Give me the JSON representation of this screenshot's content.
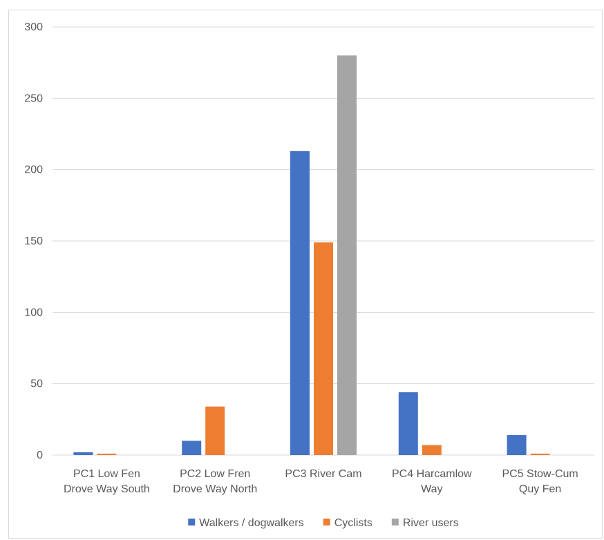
{
  "chart_data": {
    "type": "bar",
    "title": "",
    "xlabel": "",
    "ylabel": "",
    "ylim": [
      0,
      300
    ],
    "yticks": [
      0,
      50,
      100,
      150,
      200,
      250,
      300
    ],
    "grid": true,
    "legend_position": "bottom",
    "categories": [
      [
        "PC1 Low Fen",
        "Drove Way South"
      ],
      [
        "PC2 Low Fren",
        "Drove Way North"
      ],
      [
        "PC3 River Cam"
      ],
      [
        "PC4 Harcamlow",
        "Way"
      ],
      [
        "PC5 Stow-Cum",
        "Quy Fen"
      ]
    ],
    "series": [
      {
        "name": "Walkers / dogwalkers",
        "color": "#4472c4",
        "values": [
          2,
          10,
          213,
          44,
          14
        ]
      },
      {
        "name": "Cyclists",
        "color": "#ed7d31",
        "values": [
          1,
          34,
          149,
          7,
          1
        ]
      },
      {
        "name": "River users",
        "color": "#a5a5a5",
        "values": [
          0,
          0,
          280,
          0,
          0
        ]
      }
    ],
    "colors": {
      "grid": "#d9d9d9",
      "axis": "#d9d9d9",
      "text": "#595959"
    }
  }
}
